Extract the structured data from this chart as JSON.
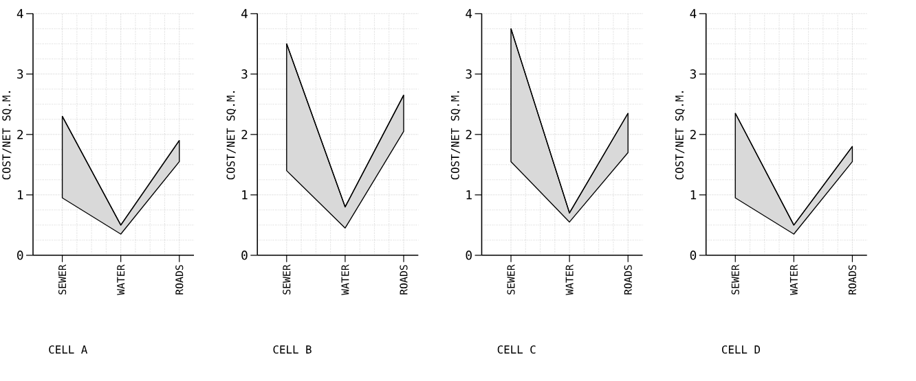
{
  "chart_data": [
    {
      "type": "line",
      "title": "CELL A",
      "ylabel": "COST/NET SQ.M.",
      "categories": [
        "SEWER",
        "WATER",
        "ROADS"
      ],
      "ylim": [
        0,
        4
      ],
      "yticks": [
        0,
        1,
        2,
        3,
        4
      ],
      "grid": true,
      "series": [
        {
          "color": "#000000",
          "values": [
            2.3,
            0.5,
            1.9
          ],
          "lower": [
            0.95,
            0.35,
            1.55
          ],
          "upper": [
            2.3,
            0.5,
            1.9
          ]
        }
      ]
    },
    {
      "type": "line",
      "title": "CELL B",
      "ylabel": "COST/NET SQ.M.",
      "categories": [
        "SEWER",
        "WATER",
        "ROADS"
      ],
      "ylim": [
        0,
        4
      ],
      "yticks": [
        0,
        1,
        2,
        3,
        4
      ],
      "grid": true,
      "series": [
        {
          "color": "#000000",
          "values": [
            3.5,
            0.8,
            2.65
          ],
          "lower": [
            1.4,
            0.45,
            2.05
          ],
          "upper": [
            3.5,
            0.8,
            2.65
          ]
        }
      ]
    },
    {
      "type": "line",
      "title": "CELL C",
      "ylabel": "COST/NET SQ.M.",
      "categories": [
        "SEWER",
        "WATER",
        "ROADS"
      ],
      "ylim": [
        0,
        4
      ],
      "yticks": [
        0,
        1,
        2,
        3,
        4
      ],
      "grid": true,
      "series": [
        {
          "color": "#000000",
          "values": [
            3.75,
            0.7,
            2.35
          ],
          "lower": [
            1.55,
            0.55,
            1.7
          ],
          "upper": [
            3.75,
            0.7,
            2.35
          ]
        }
      ]
    },
    {
      "type": "line",
      "title": "CELL D",
      "ylabel": "COST/NET SQ.M.",
      "categories": [
        "SEWER",
        "WATER",
        "ROADS"
      ],
      "ylim": [
        0,
        4
      ],
      "yticks": [
        0,
        1,
        2,
        3,
        4
      ],
      "grid": true,
      "series": [
        {
          "color": "#000000",
          "values": [
            2.35,
            0.5,
            1.8
          ],
          "lower": [
            0.95,
            0.35,
            1.55
          ],
          "upper": [
            2.35,
            0.5,
            1.8
          ]
        }
      ]
    }
  ]
}
